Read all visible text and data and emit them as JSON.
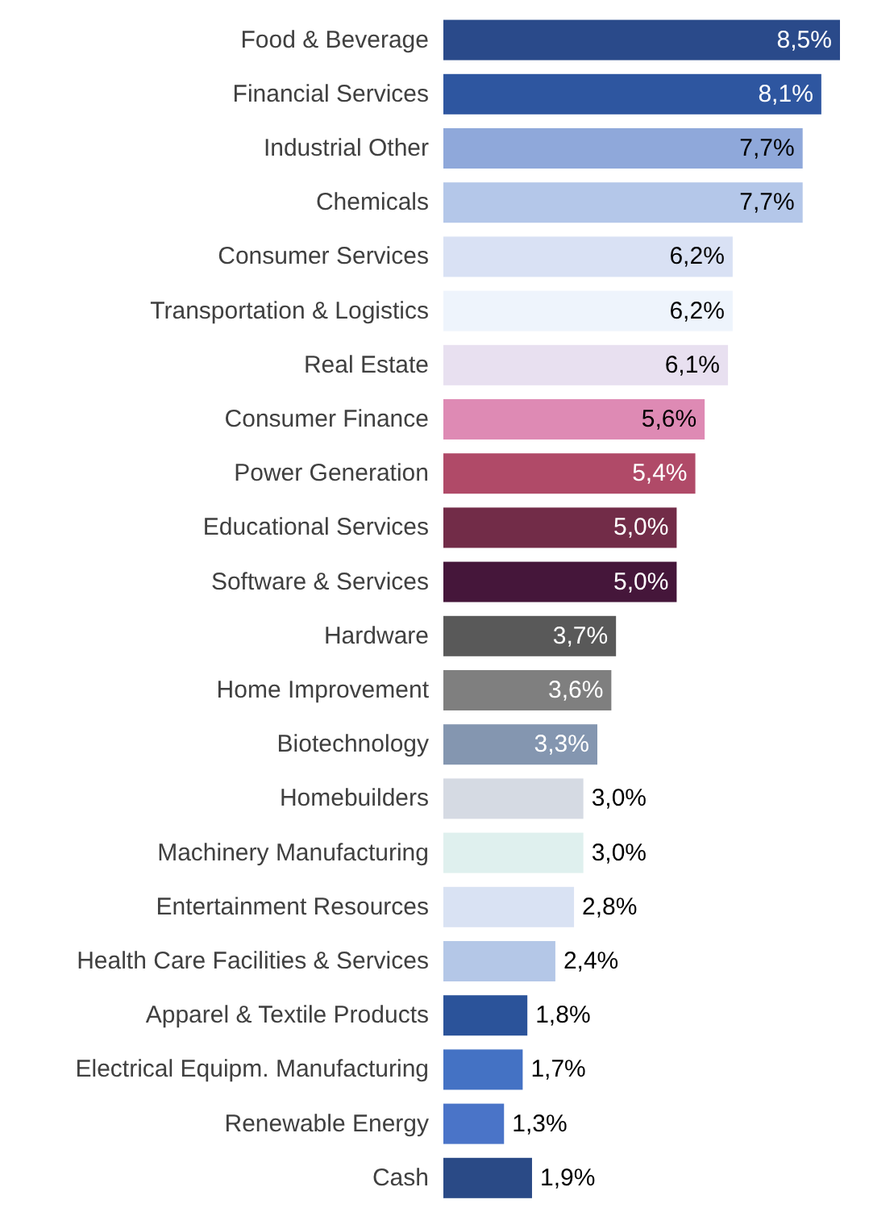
{
  "chart_data": {
    "type": "bar",
    "orientation": "horizontal",
    "categories": [
      "Food & Beverage",
      "Financial Services",
      "Industrial Other",
      "Chemicals",
      "Consumer Services",
      "Transportation & Logistics",
      "Real Estate",
      "Consumer Finance",
      "Power Generation",
      "Educational Services",
      "Software & Services",
      "Hardware",
      "Home Improvement",
      "Biotechnology",
      "Homebuilders",
      "Machinery Manufacturing",
      "Entertainment Resources",
      "Health Care Facilities & Services",
      "Apparel & Textile Products",
      "Electrical Equipm. Manufacturing",
      "Renewable Energy",
      "Cash"
    ],
    "values": [
      8.5,
      8.1,
      7.7,
      7.7,
      6.2,
      6.2,
      6.1,
      5.6,
      5.4,
      5.0,
      5.0,
      3.7,
      3.6,
      3.3,
      3.0,
      3.0,
      2.8,
      2.4,
      1.8,
      1.7,
      1.3,
      1.9
    ],
    "value_labels": [
      "8,5%",
      "8,1%",
      "7,7%",
      "7,7%",
      "6,2%",
      "6,2%",
      "6,1%",
      "5,6%",
      "5,4%",
      "5,0%",
      "5,0%",
      "3,7%",
      "3,6%",
      "3,3%",
      "3,0%",
      "3,0%",
      "2,8%",
      "2,4%",
      "1,8%",
      "1,7%",
      "1,3%",
      "1,9%"
    ],
    "colors": [
      "#2a4a8a",
      "#2e56a0",
      "#8fa8da",
      "#b4c7e9",
      "#d9e1f4",
      "#eef4fc",
      "#e8e0f0",
      "#de8ab4",
      "#b04a68",
      "#722c48",
      "#45163a",
      "#595959",
      "#7f7f7f",
      "#8496b0",
      "#d5dae3",
      "#dff0ee",
      "#d9e2f3",
      "#b4c7e7",
      "#2b539a",
      "#4472c4",
      "#4a74c8",
      "#2a4a86"
    ]
  }
}
